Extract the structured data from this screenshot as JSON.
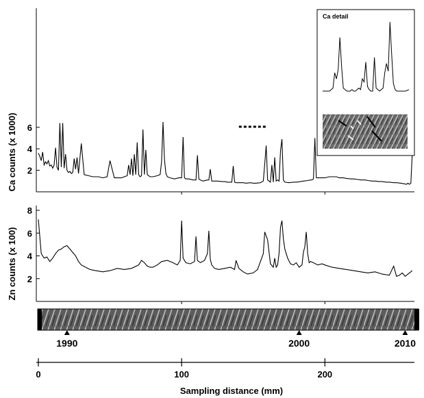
{
  "chart_data": [
    {
      "type": "line",
      "panel": "ca",
      "ylabel": "Ca counts (x 1000)",
      "yticks": [
        2,
        4,
        6
      ],
      "ylim": [
        0,
        6.5
      ],
      "xlim": [
        0,
        262
      ],
      "series": [
        {
          "x": [
            0,
            1,
            2,
            3,
            4,
            5,
            6,
            7,
            8,
            9,
            10,
            11,
            12,
            13,
            14,
            15,
            16,
            17,
            18,
            19,
            20,
            21,
            22,
            23,
            24,
            25,
            26,
            27,
            28,
            30,
            32,
            35,
            38,
            42,
            45,
            48,
            50,
            53,
            55,
            58,
            60,
            62,
            63,
            64,
            65,
            66,
            67,
            68,
            69,
            70,
            71,
            72,
            73,
            74,
            75,
            76,
            77,
            78,
            80,
            83,
            85,
            86,
            87,
            88,
            89,
            90,
            92,
            95,
            98,
            100,
            101,
            102,
            103,
            105,
            108,
            110,
            111,
            112,
            113,
            115,
            118,
            119,
            120,
            121,
            122,
            125,
            128,
            130,
            132,
            135,
            136,
            137,
            138,
            140,
            143,
            145,
            148,
            150,
            152,
            155,
            157,
            158,
            159,
            160,
            162,
            163,
            164,
            165,
            166,
            167,
            168,
            169,
            170,
            171,
            172,
            175,
            178,
            180,
            183,
            185,
            188,
            190,
            191,
            192,
            193,
            194,
            195,
            198,
            200,
            203,
            205,
            208,
            210,
            213,
            215,
            218,
            220,
            223,
            225,
            228,
            230,
            233,
            235,
            238,
            240,
            243,
            245,
            248,
            250,
            253,
            255,
            257,
            258,
            259,
            260,
            261
          ],
          "y": [
            3.6,
            3.3,
            2.9,
            3.7,
            2.5,
            2.8,
            2.6,
            2.9,
            2.4,
            2.5,
            2.2,
            2.5,
            4.1,
            2.3,
            2.0,
            6.4,
            2.3,
            6.4,
            2.2,
            3.5,
            2.0,
            1.8,
            1.9,
            1.7,
            1.8,
            3.1,
            2.1,
            3.2,
            1.7,
            4.5,
            1.6,
            1.5,
            1.4,
            1.4,
            1.3,
            1.4,
            2.9,
            1.3,
            1.3,
            1.3,
            1.4,
            1.5,
            2.5,
            1.6,
            3.1,
            1.5,
            3.5,
            1.6,
            4.6,
            1.6,
            1.4,
            1.5,
            5.8,
            1.6,
            3.9,
            1.6,
            1.5,
            1.4,
            1.4,
            1.5,
            1.6,
            2.8,
            6.5,
            3.0,
            1.7,
            1.4,
            1.3,
            1.2,
            1.3,
            1.3,
            5.1,
            1.3,
            1.2,
            1.2,
            1.1,
            1.1,
            3.4,
            1.2,
            1.1,
            1.0,
            1.1,
            1.1,
            2.1,
            1.0,
            1.0,
            1.0,
            0.95,
            0.95,
            0.9,
            0.9,
            2.4,
            0.9,
            0.85,
            0.85,
            0.85,
            0.8,
            0.85,
            0.8,
            0.8,
            0.85,
            1.0,
            2.6,
            4.3,
            1.1,
            0.9,
            2.5,
            0.9,
            3.2,
            1.0,
            1.1,
            1.0,
            3.8,
            4.9,
            1.1,
            0.9,
            0.85,
            0.9,
            0.9,
            0.95,
            1.0,
            1.05,
            1.1,
            1.1,
            1.2,
            5.0,
            1.3,
            1.3,
            1.3,
            1.3,
            1.4,
            1.4,
            1.4,
            1.3,
            1.3,
            1.25,
            1.2,
            1.2,
            1.15,
            1.1,
            1.1,
            1.05,
            1.0,
            1.0,
            0.95,
            0.95,
            0.9,
            0.9,
            0.85,
            0.85,
            0.8,
            0.75,
            0.7,
            0.8,
            0.7,
            0.8,
            3.6
          ]
        }
      ],
      "inset": {
        "title": "Ca detail",
        "marker_x": [
          140,
          159
        ],
        "series": [
          {
            "x": [
              0,
              4,
              8,
              10,
              12,
              14,
              16,
              18,
              20,
              22,
              24,
              26,
              28,
              30,
              32,
              34,
              36,
              38,
              40,
              42,
              44,
              46,
              48,
              50,
              52,
              54,
              56,
              58,
              60,
              62,
              64,
              66,
              68,
              70,
              72,
              74,
              76,
              78,
              80,
              82,
              84,
              86,
              88,
              90,
              92,
              96,
              100
            ],
            "y": [
              0.4,
              0.4,
              0.4,
              0.5,
              0.6,
              1.6,
              1.2,
              1.8,
              3.9,
              2.0,
              0.6,
              0.5,
              0.4,
              0.4,
              0.4,
              0.5,
              0.4,
              0.4,
              0.5,
              0.6,
              0.5,
              1.2,
              1.0,
              2.3,
              0.7,
              0.5,
              0.4,
              0.4,
              2.6,
              0.6,
              0.5,
              0.4,
              0.5,
              0.6,
              1.6,
              2.2,
              1.7,
              4.9,
              2.8,
              0.9,
              0.5,
              0.4,
              0.4,
              0.4,
              0.4,
              0.4,
              0.5
            ]
          }
        ]
      }
    },
    {
      "type": "line",
      "panel": "zn",
      "ylabel": "Zn counts (x 100)",
      "xlabel": "Sampling distance (mm)",
      "yticks": [
        2,
        4,
        6,
        8
      ],
      "ylim": [
        0,
        8
      ],
      "xlim": [
        0,
        262
      ],
      "xticks": [
        0,
        100,
        200
      ],
      "year_ticks": [
        {
          "label": "1990",
          "x": 20
        },
        {
          "label": "2000",
          "x": 182
        },
        {
          "label": "2010",
          "x": 256
        }
      ],
      "series": [
        {
          "x": [
            0,
            2,
            4,
            6,
            8,
            10,
            12,
            14,
            16,
            18,
            20,
            22,
            24,
            26,
            28,
            30,
            33,
            36,
            40,
            45,
            50,
            55,
            60,
            65,
            70,
            72,
            74,
            76,
            78,
            80,
            83,
            86,
            90,
            94,
            97,
            99,
            100,
            101,
            103,
            106,
            109,
            110,
            111,
            113,
            116,
            118,
            119,
            120,
            121,
            123,
            126,
            130,
            134,
            137,
            138,
            140,
            143,
            146,
            150,
            153,
            155,
            157,
            158,
            160,
            162,
            164,
            165,
            166,
            167,
            168,
            169,
            170,
            171,
            172,
            174,
            176,
            178,
            180,
            182,
            184,
            185,
            186,
            187,
            188,
            189,
            190,
            192,
            195,
            198,
            200,
            205,
            210,
            215,
            220,
            225,
            230,
            235,
            240,
            245,
            248,
            250,
            252,
            254,
            256,
            258,
            260,
            261
          ],
          "y": [
            7.2,
            4.2,
            3.8,
            3.9,
            3.5,
            3.8,
            4.2,
            4.5,
            4.6,
            4.8,
            4.9,
            4.6,
            4.3,
            4.0,
            3.5,
            3.2,
            3.0,
            2.8,
            2.7,
            2.6,
            2.7,
            2.9,
            2.8,
            2.9,
            3.2,
            3.6,
            3.4,
            3.1,
            3.0,
            3.0,
            3.2,
            3.5,
            3.6,
            3.4,
            3.2,
            3.6,
            7.1,
            3.8,
            3.4,
            3.3,
            3.5,
            5.7,
            3.6,
            3.4,
            3.6,
            4.2,
            6.2,
            3.7,
            3.2,
            2.9,
            2.8,
            2.9,
            3.0,
            2.8,
            3.6,
            2.9,
            2.6,
            2.4,
            2.5,
            2.8,
            3.5,
            4.2,
            6.1,
            5.4,
            3.3,
            3.0,
            3.8,
            3.0,
            3.2,
            4.2,
            6.5,
            7.1,
            5.5,
            4.6,
            3.8,
            3.3,
            3.2,
            3.4,
            3.0,
            3.2,
            4.3,
            4.8,
            6.1,
            4.2,
            3.4,
            3.5,
            3.4,
            3.2,
            3.3,
            3.2,
            3.0,
            2.9,
            2.8,
            2.7,
            2.6,
            2.5,
            2.6,
            2.4,
            2.3,
            3.1,
            2.2,
            2.3,
            2.5,
            2.2,
            2.4,
            2.6,
            2.7
          ]
        }
      ]
    }
  ]
}
